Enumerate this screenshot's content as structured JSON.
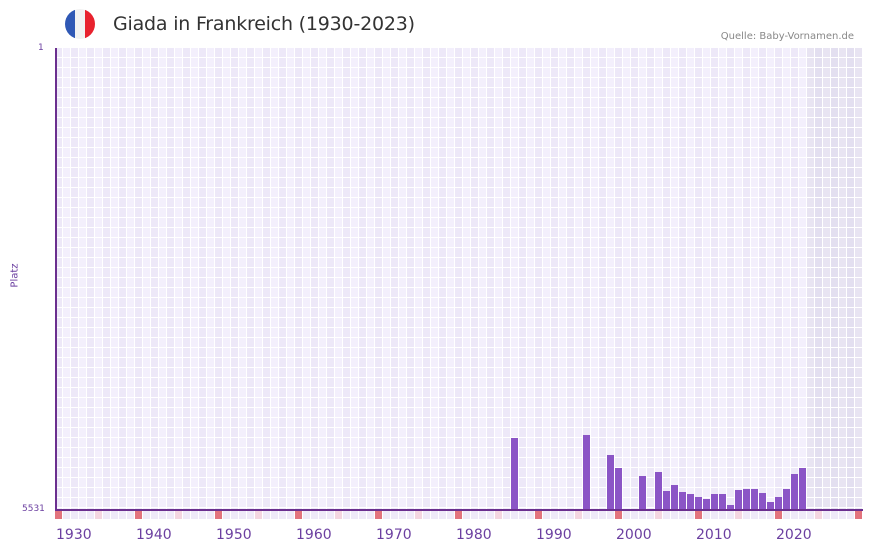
{
  "header": {
    "title": "Giada in Frankreich (1930-2023)",
    "source": "Quelle: Baby-Vornamen.de",
    "flag_icon": "france-flag-icon",
    "flag_colors": [
      "#2f58b5",
      "#f2f2f2",
      "#e8222e"
    ]
  },
  "axis": {
    "y_top_label": "1",
    "y_bottom_label": "5531",
    "y_title": "Platz",
    "x_ticks": [
      "1930",
      "1940",
      "1950",
      "1960",
      "1970",
      "1980",
      "1990",
      "2000",
      "2010",
      "2020"
    ]
  },
  "colors": {
    "bar": "#8b55c6",
    "axis": "#6b2f8f",
    "decade_marker": "#e2737d",
    "half_decade_marker": "#f4d6e0",
    "grid_a": "#ede8f8",
    "grid_b": "#f3effc",
    "future_a": "#e3dff0",
    "future_b": "#e8e4f2"
  },
  "chart_data": {
    "type": "bar",
    "title": "Giada in Frankreich (1930-2023)",
    "xlabel": "",
    "ylabel": "Platz",
    "ylim": [
      5531,
      1
    ],
    "y_inverted": true,
    "x_range": [
      1930,
      2030
    ],
    "grid": true,
    "legend": "none",
    "categories": [
      1987,
      1996,
      1999,
      2000,
      2003,
      2005,
      2006,
      2007,
      2008,
      2009,
      2010,
      2011,
      2012,
      2013,
      2014,
      2015,
      2016,
      2017,
      2018,
      2019,
      2020,
      2021,
      2022,
      2023
    ],
    "values": [
      4669,
      4633,
      4873,
      5029,
      5124,
      5077,
      5304,
      5232,
      5316,
      5340,
      5376,
      5400,
      5340,
      5340,
      5471,
      5292,
      5280,
      5280,
      5328,
      5436,
      5376,
      5280,
      5100,
      5029
    ],
    "annotations": [
      "Source: Baby-Vornamen.de",
      "Shaded future years 2024-2030"
    ]
  }
}
